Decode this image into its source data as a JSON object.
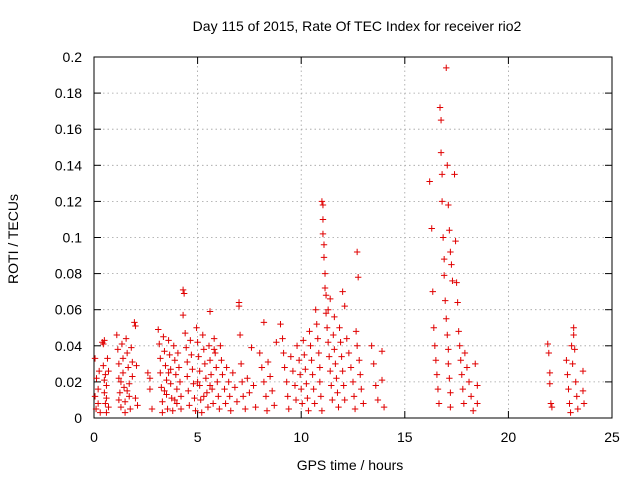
{
  "chart_data": {
    "type": "scatter",
    "title": "Day 115 of 2015, Rate Of TEC Index for receiver rio2",
    "xlabel": "GPS time / hours",
    "ylabel": "ROTI / TECUs",
    "xlim": [
      0,
      25
    ],
    "ylim": [
      0,
      0.2
    ],
    "x_ticks": [
      0,
      5,
      10,
      15,
      20,
      25
    ],
    "y_ticks": [
      0,
      0.02,
      0.04,
      0.06,
      0.08,
      0.1,
      0.12,
      0.14,
      0.16,
      0.18,
      0.2
    ],
    "x_tick_labels": [
      "0",
      "5",
      "10",
      "15",
      "20",
      "25"
    ],
    "y_tick_labels": [
      "0",
      "0.02",
      "0.04",
      "0.06",
      "0.08",
      "0.1",
      "0.12",
      "0.14",
      "0.16",
      "0.18",
      "0.2"
    ],
    "grid": true,
    "marker": "+",
    "color": "#e00000",
    "points": [
      [
        0.05,
        0.033
      ],
      [
        0.05,
        0.012
      ],
      [
        0.1,
        0.005
      ],
      [
        0.12,
        0.022
      ],
      [
        0.2,
        0.016
      ],
      [
        0.2,
        0.008
      ],
      [
        0.25,
        0.026
      ],
      [
        0.3,
        0.003
      ],
      [
        0.4,
        0.042
      ],
      [
        0.45,
        0.041
      ],
      [
        0.5,
        0.043
      ],
      [
        0.45,
        0.029
      ],
      [
        0.5,
        0.021
      ],
      [
        0.5,
        0.014
      ],
      [
        0.55,
        0.008
      ],
      [
        0.55,
        0.024
      ],
      [
        0.6,
        0.018
      ],
      [
        0.6,
        0.011
      ],
      [
        0.6,
        0.003
      ],
      [
        0.65,
        0.033
      ],
      [
        0.7,
        0.006
      ],
      [
        0.7,
        0.026
      ],
      [
        1.1,
        0.046
      ],
      [
        1.15,
        0.038
      ],
      [
        1.2,
        0.03
      ],
      [
        1.2,
        0.022
      ],
      [
        1.25,
        0.014
      ],
      [
        1.3,
        0.006
      ],
      [
        1.35,
        0.041
      ],
      [
        1.4,
        0.033
      ],
      [
        1.4,
        0.025
      ],
      [
        1.45,
        0.017
      ],
      [
        1.5,
        0.009
      ],
      [
        1.5,
        0.003
      ],
      [
        1.55,
        0.044
      ],
      [
        1.6,
        0.036
      ],
      [
        1.65,
        0.028
      ],
      [
        1.7,
        0.019
      ],
      [
        1.7,
        0.012
      ],
      [
        1.75,
        0.005
      ],
      [
        1.8,
        0.039
      ],
      [
        1.85,
        0.031
      ],
      [
        1.85,
        0.023
      ],
      [
        1.2,
        0.01
      ],
      [
        1.3,
        0.02
      ],
      [
        1.6,
        0.015
      ],
      [
        1.95,
        0.053
      ],
      [
        2.0,
        0.051
      ],
      [
        2.0,
        0.011
      ],
      [
        2.05,
        0.029
      ],
      [
        2.1,
        0.007
      ],
      [
        2.6,
        0.025
      ],
      [
        2.7,
        0.022
      ],
      [
        2.7,
        0.016
      ],
      [
        2.8,
        0.005
      ],
      [
        3.1,
        0.049
      ],
      [
        3.15,
        0.041
      ],
      [
        3.2,
        0.033
      ],
      [
        3.2,
        0.025
      ],
      [
        3.25,
        0.017
      ],
      [
        3.3,
        0.009
      ],
      [
        3.3,
        0.003
      ],
      [
        3.35,
        0.045
      ],
      [
        3.4,
        0.037
      ],
      [
        3.45,
        0.029
      ],
      [
        3.5,
        0.021
      ],
      [
        3.5,
        0.013
      ],
      [
        3.55,
        0.005
      ],
      [
        3.6,
        0.043
      ],
      [
        3.65,
        0.035
      ],
      [
        3.7,
        0.027
      ],
      [
        3.7,
        0.019
      ],
      [
        3.75,
        0.011
      ],
      [
        3.8,
        0.004
      ],
      [
        3.85,
        0.04
      ],
      [
        3.9,
        0.032
      ],
      [
        3.95,
        0.024
      ],
      [
        4.0,
        0.016
      ],
      [
        4.0,
        0.008
      ],
      [
        4.05,
        0.036
      ],
      [
        4.1,
        0.028
      ],
      [
        4.15,
        0.02
      ],
      [
        4.2,
        0.012
      ],
      [
        4.2,
        0.005
      ],
      [
        3.4,
        0.015
      ],
      [
        3.6,
        0.025
      ],
      [
        3.9,
        0.01
      ],
      [
        4.3,
        0.071
      ],
      [
        4.35,
        0.069
      ],
      [
        4.3,
        0.057
      ],
      [
        4.4,
        0.047
      ],
      [
        4.45,
        0.039
      ],
      [
        4.5,
        0.031
      ],
      [
        4.5,
        0.023
      ],
      [
        4.55,
        0.015
      ],
      [
        4.6,
        0.007
      ],
      [
        4.65,
        0.043
      ],
      [
        4.7,
        0.035
      ],
      [
        4.75,
        0.027
      ],
      [
        4.8,
        0.019
      ],
      [
        4.85,
        0.011
      ],
      [
        4.9,
        0.004
      ],
      [
        4.95,
        0.05
      ],
      [
        5.0,
        0.042
      ],
      [
        5.05,
        0.034
      ],
      [
        5.1,
        0.026
      ],
      [
        5.1,
        0.018
      ],
      [
        5.15,
        0.01
      ],
      [
        5.2,
        0.003
      ],
      [
        5.25,
        0.046
      ],
      [
        5.3,
        0.038
      ],
      [
        5.35,
        0.03
      ],
      [
        5.4,
        0.022
      ],
      [
        5.45,
        0.014
      ],
      [
        5.5,
        0.006
      ],
      [
        5.55,
        0.04
      ],
      [
        5.6,
        0.032
      ],
      [
        5.65,
        0.024
      ],
      [
        5.7,
        0.016
      ],
      [
        5.75,
        0.008
      ],
      [
        5.8,
        0.044
      ],
      [
        5.85,
        0.036
      ],
      [
        5.9,
        0.028
      ],
      [
        5.95,
        0.02
      ],
      [
        6.0,
        0.012
      ],
      [
        6.05,
        0.005
      ],
      [
        5.0,
        0.02
      ],
      [
        5.3,
        0.012
      ],
      [
        5.6,
        0.018
      ],
      [
        5.6,
        0.059
      ],
      [
        5.8,
        0.038
      ],
      [
        6.1,
        0.04
      ],
      [
        6.15,
        0.032
      ],
      [
        6.2,
        0.024
      ],
      [
        6.3,
        0.016
      ],
      [
        6.35,
        0.008
      ],
      [
        6.4,
        0.028
      ],
      [
        6.5,
        0.02
      ],
      [
        6.55,
        0.012
      ],
      [
        6.6,
        0.004
      ],
      [
        6.7,
        0.025
      ],
      [
        6.8,
        0.017
      ],
      [
        6.9,
        0.009
      ],
      [
        7.0,
        0.064
      ],
      [
        7.0,
        0.062
      ],
      [
        7.05,
        0.046
      ],
      [
        7.1,
        0.03
      ],
      [
        7.15,
        0.02
      ],
      [
        7.2,
        0.012
      ],
      [
        7.3,
        0.005
      ],
      [
        7.4,
        0.022
      ],
      [
        7.5,
        0.014
      ],
      [
        7.6,
        0.039
      ],
      [
        7.7,
        0.018
      ],
      [
        7.8,
        0.006
      ],
      [
        8.0,
        0.036
      ],
      [
        8.1,
        0.028
      ],
      [
        8.2,
        0.053
      ],
      [
        8.2,
        0.02
      ],
      [
        8.3,
        0.012
      ],
      [
        8.35,
        0.004
      ],
      [
        8.4,
        0.031
      ],
      [
        8.5,
        0.023
      ],
      [
        8.6,
        0.015
      ],
      [
        8.7,
        0.007
      ],
      [
        8.8,
        0.042
      ],
      [
        9.0,
        0.052
      ],
      [
        9.1,
        0.044
      ],
      [
        9.15,
        0.036
      ],
      [
        9.2,
        0.028
      ],
      [
        9.3,
        0.02
      ],
      [
        9.35,
        0.012
      ],
      [
        9.4,
        0.005
      ],
      [
        9.5,
        0.034
      ],
      [
        9.6,
        0.026
      ],
      [
        9.7,
        0.018
      ],
      [
        9.75,
        0.01
      ],
      [
        9.8,
        0.04
      ],
      [
        9.9,
        0.032
      ],
      [
        9.95,
        0.024
      ],
      [
        10.0,
        0.016
      ],
      [
        10.05,
        0.008
      ],
      [
        10.1,
        0.043
      ],
      [
        10.15,
        0.035
      ],
      [
        10.2,
        0.027
      ],
      [
        10.25,
        0.019
      ],
      [
        10.3,
        0.011
      ],
      [
        10.35,
        0.004
      ],
      [
        10.4,
        0.048
      ],
      [
        10.45,
        0.04
      ],
      [
        10.5,
        0.032
      ],
      [
        10.55,
        0.024
      ],
      [
        10.6,
        0.016
      ],
      [
        10.65,
        0.008
      ],
      [
        10.7,
        0.06
      ],
      [
        10.75,
        0.052
      ],
      [
        10.8,
        0.044
      ],
      [
        10.85,
        0.036
      ],
      [
        10.9,
        0.028
      ],
      [
        10.9,
        0.02
      ],
      [
        10.95,
        0.012
      ],
      [
        11.0,
        0.004
      ],
      [
        11.0,
        0.12
      ],
      [
        11.05,
        0.118
      ],
      [
        11.05,
        0.11
      ],
      [
        11.05,
        0.102
      ],
      [
        11.1,
        0.096
      ],
      [
        11.1,
        0.089
      ],
      [
        11.15,
        0.08
      ],
      [
        11.15,
        0.072
      ],
      [
        11.2,
        0.068
      ],
      [
        11.2,
        0.058
      ],
      [
        11.25,
        0.05
      ],
      [
        11.3,
        0.042
      ],
      [
        11.35,
        0.034
      ],
      [
        11.4,
        0.026
      ],
      [
        11.45,
        0.018
      ],
      [
        11.5,
        0.01
      ],
      [
        11.55,
        0.046
      ],
      [
        11.6,
        0.038
      ],
      [
        11.65,
        0.03
      ],
      [
        11.7,
        0.022
      ],
      [
        11.75,
        0.014
      ],
      [
        11.8,
        0.006
      ],
      [
        11.85,
        0.05
      ],
      [
        11.9,
        0.042
      ],
      [
        11.95,
        0.034
      ],
      [
        12.0,
        0.026
      ],
      [
        12.05,
        0.018
      ],
      [
        12.1,
        0.01
      ],
      [
        11.3,
        0.06
      ],
      [
        11.4,
        0.066
      ],
      [
        11.6,
        0.056
      ],
      [
        12.0,
        0.07
      ],
      [
        12.1,
        0.062
      ],
      [
        12.2,
        0.044
      ],
      [
        12.3,
        0.036
      ],
      [
        12.4,
        0.028
      ],
      [
        12.5,
        0.02
      ],
      [
        12.55,
        0.012
      ],
      [
        12.6,
        0.005
      ],
      [
        12.65,
        0.048
      ],
      [
        12.7,
        0.04
      ],
      [
        12.7,
        0.092
      ],
      [
        12.75,
        0.078
      ],
      [
        12.8,
        0.032
      ],
      [
        12.85,
        0.024
      ],
      [
        12.9,
        0.016
      ],
      [
        13.0,
        0.008
      ],
      [
        13.4,
        0.04
      ],
      [
        13.5,
        0.03
      ],
      [
        13.6,
        0.018
      ],
      [
        13.7,
        0.01
      ],
      [
        13.9,
        0.037
      ],
      [
        13.9,
        0.021
      ],
      [
        14.0,
        0.006
      ],
      [
        16.2,
        0.131
      ],
      [
        16.3,
        0.105
      ],
      [
        16.35,
        0.07
      ],
      [
        16.4,
        0.05
      ],
      [
        16.45,
        0.04
      ],
      [
        16.5,
        0.032
      ],
      [
        16.55,
        0.024
      ],
      [
        16.6,
        0.016
      ],
      [
        16.65,
        0.008
      ],
      [
        16.7,
        0.172
      ],
      [
        16.75,
        0.165
      ],
      [
        16.75,
        0.147
      ],
      [
        16.8,
        0.135
      ],
      [
        16.8,
        0.12
      ],
      [
        16.85,
        0.1
      ],
      [
        16.9,
        0.088
      ],
      [
        16.9,
        0.079
      ],
      [
        16.95,
        0.065
      ],
      [
        17.0,
        0.055
      ],
      [
        17.05,
        0.046
      ],
      [
        17.1,
        0.038
      ],
      [
        17.1,
        0.03
      ],
      [
        17.15,
        0.022
      ],
      [
        17.2,
        0.014
      ],
      [
        17.2,
        0.006
      ],
      [
        17.0,
        0.194
      ],
      [
        17.05,
        0.14
      ],
      [
        17.1,
        0.118
      ],
      [
        17.15,
        0.104
      ],
      [
        17.2,
        0.092
      ],
      [
        17.25,
        0.085
      ],
      [
        17.3,
        0.076
      ],
      [
        17.4,
        0.135
      ],
      [
        17.45,
        0.098
      ],
      [
        17.5,
        0.075
      ],
      [
        17.55,
        0.064
      ],
      [
        17.6,
        0.048
      ],
      [
        17.65,
        0.04
      ],
      [
        17.7,
        0.032
      ],
      [
        17.75,
        0.024
      ],
      [
        17.8,
        0.016
      ],
      [
        17.85,
        0.008
      ],
      [
        17.9,
        0.036
      ],
      [
        18.0,
        0.028
      ],
      [
        18.1,
        0.02
      ],
      [
        18.2,
        0.012
      ],
      [
        18.3,
        0.004
      ],
      [
        18.4,
        0.03
      ],
      [
        18.5,
        0.018
      ],
      [
        18.5,
        0.008
      ],
      [
        21.9,
        0.041
      ],
      [
        21.95,
        0.036
      ],
      [
        22.0,
        0.025
      ],
      [
        22.0,
        0.019
      ],
      [
        22.05,
        0.008
      ],
      [
        22.1,
        0.006
      ],
      [
        22.8,
        0.032
      ],
      [
        22.85,
        0.024
      ],
      [
        22.9,
        0.016
      ],
      [
        22.95,
        0.008
      ],
      [
        23.0,
        0.003
      ],
      [
        23.05,
        0.04
      ],
      [
        23.1,
        0.03
      ],
      [
        23.15,
        0.05
      ],
      [
        23.15,
        0.046
      ],
      [
        23.2,
        0.038
      ],
      [
        23.25,
        0.02
      ],
      [
        23.3,
        0.012
      ],
      [
        23.35,
        0.005
      ],
      [
        23.6,
        0.026
      ],
      [
        23.6,
        0.015
      ],
      [
        23.65,
        0.008
      ]
    ]
  }
}
